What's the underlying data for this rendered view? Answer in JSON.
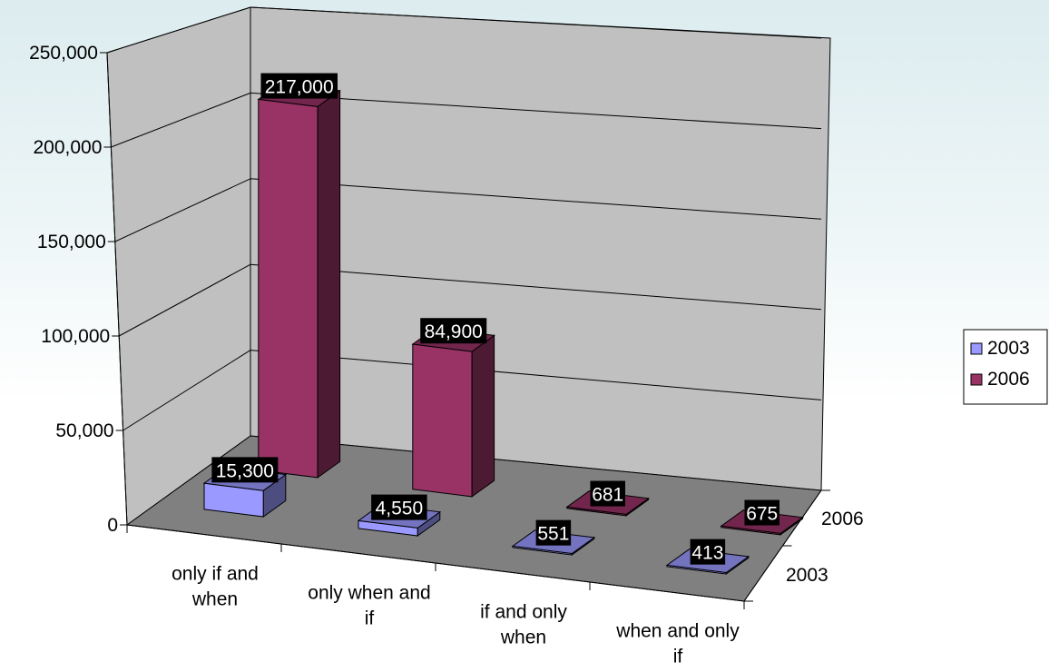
{
  "chart_data": {
    "type": "bar",
    "title": "",
    "xlabel": "",
    "ylabel": "",
    "ylim": [
      0,
      250000
    ],
    "y_ticks": [
      "0",
      "50,000",
      "100,000",
      "150,000",
      "200,000",
      "250,000"
    ],
    "y_tick_values": [
      0,
      50000,
      100000,
      150000,
      200000,
      250000
    ],
    "categories": [
      [
        "only if and",
        "when"
      ],
      [
        "only when and",
        "if"
      ],
      [
        "if and only",
        "when"
      ],
      [
        "when and only",
        "if"
      ]
    ],
    "depth_axis_labels": [
      "2003",
      "2006"
    ],
    "series": [
      {
        "name": "2003",
        "color": "#9999ff",
        "values": [
          15300,
          4550,
          551,
          413
        ],
        "labels": [
          "15,300",
          "4,550",
          "551",
          "413"
        ]
      },
      {
        "name": "2006",
        "color": "#993366",
        "values": [
          217000,
          84900,
          681,
          675
        ],
        "labels": [
          "217,000",
          "84,900",
          "681",
          "675"
        ]
      }
    ],
    "legend": {
      "position": "right",
      "entries": [
        "2003",
        "2006"
      ]
    },
    "grid": true,
    "style": "3d"
  }
}
